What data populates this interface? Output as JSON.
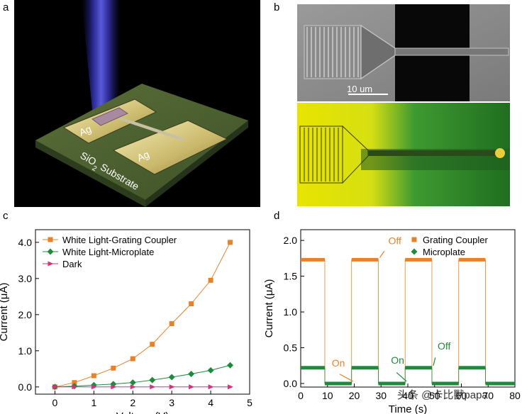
{
  "panels": {
    "a": {
      "label": "a",
      "electrode_left": "Ag",
      "electrode_right": "Ag",
      "substrate_text": "SiO",
      "substrate_sub": "2",
      "substrate_suffix": " Substrate"
    },
    "b": {
      "label": "b",
      "scale_bar": "10 um"
    },
    "c": {
      "label": "c"
    },
    "d": {
      "label": "d"
    }
  },
  "watermark": "头条 @卡比獸papa",
  "colors": {
    "orange": "#e8822a",
    "green": "#1f8a3c",
    "magenta": "#d6327a"
  },
  "chart_data": [
    {
      "id": "c",
      "type": "line",
      "xlabel": "Voltage (V)",
      "ylabel": "Current (μA)",
      "xlim": [
        -0.5,
        5
      ],
      "ylim": [
        -0.2,
        4.35
      ],
      "xticks": [
        0,
        1,
        2,
        3,
        4,
        5
      ],
      "yticks": [
        0.0,
        1.0,
        2.0,
        3.0,
        4.0
      ],
      "ytick_labels": [
        "0.0",
        "1.0",
        "2.0",
        "3.0",
        "4.0"
      ],
      "legend_position": "top-left",
      "grid": false,
      "series": [
        {
          "name": "White Light-Grating Coupler",
          "color": "#e8822a",
          "marker": "square",
          "x": [
            0,
            0.5,
            1.0,
            1.5,
            2.0,
            2.5,
            3.0,
            3.5,
            4.0,
            4.5
          ],
          "y": [
            0.0,
            0.12,
            0.31,
            0.52,
            0.78,
            1.18,
            1.75,
            2.3,
            2.95,
            4.0
          ]
        },
        {
          "name": "White Light-Microplate",
          "color": "#1f8a3c",
          "marker": "diamond",
          "x": [
            0,
            0.5,
            1.0,
            1.5,
            2.0,
            2.5,
            3.0,
            3.5,
            4.0,
            4.5
          ],
          "y": [
            0.0,
            0.02,
            0.05,
            0.08,
            0.12,
            0.19,
            0.27,
            0.36,
            0.46,
            0.6
          ]
        },
        {
          "name": "Dark",
          "color": "#d6327a",
          "marker": "triangle-right",
          "x": [
            0,
            0.5,
            1.0,
            1.5,
            2.0,
            2.5,
            3.0,
            3.5,
            4.0,
            4.5
          ],
          "y": [
            0.0,
            0.0,
            0.0,
            0.0,
            0.0,
            0.0,
            0.0,
            0.0,
            0.0,
            0.0
          ]
        }
      ]
    },
    {
      "id": "d",
      "type": "line",
      "xlabel": "Time (s)",
      "ylabel": "Current (μA)",
      "xlim": [
        0,
        80
      ],
      "ylim": [
        -0.05,
        2.15
      ],
      "xticks": [
        0,
        10,
        20,
        30,
        40,
        50,
        60,
        70,
        80
      ],
      "yticks": [
        0.0,
        0.5,
        1.0,
        1.5,
        2.0
      ],
      "ytick_labels": [
        "0.0",
        "0.5",
        "1.0",
        "1.5",
        "2.0"
      ],
      "legend_position": "top-right",
      "grid": false,
      "series": [
        {
          "name": "Grating Coupler",
          "color": "#e8822a",
          "marker": "square",
          "on_value": 1.73,
          "off_value": 0.0,
          "steps": [
            [
              0,
              1.73
            ],
            [
              9,
              1.73
            ],
            [
              9,
              0.0
            ],
            [
              19,
              0.0
            ],
            [
              19,
              1.73
            ],
            [
              29,
              1.73
            ],
            [
              29,
              0.0
            ],
            [
              39,
              0.0
            ],
            [
              39,
              1.73
            ],
            [
              49,
              1.73
            ],
            [
              49,
              0.0
            ],
            [
              59,
              0.0
            ],
            [
              59,
              1.73
            ],
            [
              69,
              1.73
            ],
            [
              69,
              0.0
            ],
            [
              80,
              0.0
            ]
          ]
        },
        {
          "name": "Microplate",
          "color": "#1f8a3c",
          "marker": "diamond",
          "on_value": 0.22,
          "off_value": 0.0,
          "steps": [
            [
              0,
              0.22
            ],
            [
              9,
              0.22
            ],
            [
              9,
              0.0
            ],
            [
              19,
              0.0
            ],
            [
              19,
              0.22
            ],
            [
              29,
              0.22
            ],
            [
              29,
              0.0
            ],
            [
              39,
              0.0
            ],
            [
              39,
              0.22
            ],
            [
              49,
              0.22
            ],
            [
              49,
              0.0
            ],
            [
              59,
              0.0
            ],
            [
              59,
              0.22
            ],
            [
              69,
              0.22
            ],
            [
              69,
              0.0
            ],
            [
              80,
              0.0
            ]
          ]
        }
      ],
      "annotations": [
        {
          "text": "Off",
          "color": "#e8822a",
          "x": 29,
          "y": 1.73
        },
        {
          "text": "On",
          "color": "#e8822a",
          "x": 19,
          "y": 0.0
        },
        {
          "text": "On",
          "color": "#1f8a3c",
          "x": 39,
          "y": 0.0
        },
        {
          "text": "Off",
          "color": "#1f8a3c",
          "x": 49,
          "y": 0.22
        }
      ]
    }
  ]
}
